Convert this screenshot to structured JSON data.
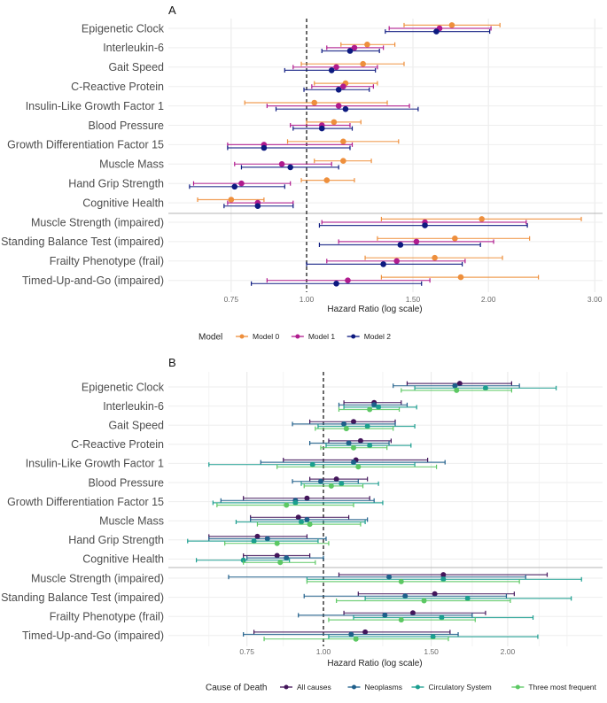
{
  "chart_data": [
    {
      "type": "forest",
      "panel_label": "A",
      "xlabel": "Hazard Ratio (log scale)",
      "x_scale": "log",
      "xlim": [
        0.62,
        3.15
      ],
      "x_ticks": [
        "0.75",
        "1.00",
        "1.50",
        "2.00",
        "3.00"
      ],
      "x_tick_values": [
        0.75,
        1.0,
        1.5,
        2.0,
        3.0
      ],
      "reference_line": 1.0,
      "group_separator_after": "Cognitive Health",
      "legend_title": "Model",
      "legend_position": "bottom",
      "categories": [
        "Epigenetic Clock",
        "Interleukin-6",
        "Gait Speed",
        "C-Reactive Protein",
        "Insulin-Like Growth Factor 1",
        "Blood Pressure",
        "Growth Differentiation Factor 15",
        "Muscle Mass",
        "Hand Grip Strength",
        "Cognitive Health",
        "Muscle Strength (impaired)",
        "Standing Balance Test (impaired)",
        "Frailty Phenotype (frail)",
        "Timed-Up-and-Go (impaired)"
      ],
      "series": [
        {
          "name": "Model 0",
          "color": "#ee8f3c",
          "hr": [
            1.74,
            1.26,
            1.24,
            1.16,
            1.03,
            1.11,
            1.15,
            1.15,
            1.08,
            0.75,
            1.95,
            1.76,
            1.63,
            1.8
          ],
          "lower": [
            1.45,
            1.14,
            0.98,
            1.03,
            0.79,
            1.0,
            0.93,
            1.03,
            0.98,
            0.66,
            1.33,
            1.31,
            1.25,
            1.33
          ],
          "upper": [
            2.09,
            1.4,
            1.45,
            1.31,
            1.36,
            1.23,
            1.42,
            1.28,
            1.2,
            0.85,
            2.85,
            2.34,
            2.11,
            2.42
          ]
        },
        {
          "name": "Model 1",
          "color": "#b01b8e",
          "hr": [
            1.66,
            1.2,
            1.12,
            1.15,
            1.13,
            1.06,
            0.85,
            0.91,
            0.78,
            0.83,
            1.57,
            1.52,
            1.41,
            1.17
          ],
          "lower": [
            1.37,
            1.08,
            0.95,
            1.02,
            0.86,
            0.94,
            0.74,
            0.76,
            0.65,
            0.74,
            1.06,
            1.13,
            1.08,
            0.86
          ],
          "upper": [
            2.02,
            1.34,
            1.31,
            1.29,
            1.48,
            1.18,
            1.19,
            1.1,
            0.94,
            0.95,
            2.31,
            2.04,
            1.83,
            1.6
          ]
        },
        {
          "name": "Model 2",
          "color": "#0d1a80",
          "hr": [
            1.64,
            1.18,
            1.1,
            1.13,
            1.16,
            1.06,
            0.85,
            0.94,
            0.76,
            0.83,
            1.57,
            1.43,
            1.34,
            1.12
          ],
          "lower": [
            1.35,
            1.06,
            0.92,
            0.99,
            0.89,
            0.95,
            0.74,
            0.78,
            0.64,
            0.73,
            1.05,
            1.05,
            1.0,
            0.81
          ],
          "upper": [
            2.01,
            1.32,
            1.3,
            1.27,
            1.53,
            1.19,
            1.18,
            1.13,
            0.92,
            0.95,
            2.32,
            1.94,
            1.81,
            1.55
          ]
        }
      ]
    },
    {
      "type": "forest",
      "panel_label": "B",
      "xlabel": "Hazard Ratio (log scale)",
      "x_scale": "log",
      "xlim": [
        0.58,
        2.7
      ],
      "x_ticks": [
        "0.75",
        "1.00",
        "1.50",
        "2.00"
      ],
      "x_tick_values": [
        0.75,
        1.0,
        1.5,
        2.0
      ],
      "reference_line": 1.0,
      "group_separator_after": "Cognitive Health",
      "legend_title": "Cause of Death",
      "legend_position": "bottom",
      "categories": [
        "Epigenetic Clock",
        "Interleukin-6",
        "Gait Speed",
        "C-Reactive Protein",
        "Insulin-Like Growth Factor 1",
        "Blood Pressure",
        "Growth Differentiation Factor 15",
        "Muscle Mass",
        "Hand Grip Strength",
        "Cognitive Health",
        "Muscle Strength (impaired)",
        "Standing Balance Test (impaired)",
        "Frailty Phenotype (frail)",
        "Timed-Up-and-Go (impaired)"
      ],
      "series": [
        {
          "name": "All causes",
          "color": "#43155a",
          "hr": [
            1.67,
            1.21,
            1.12,
            1.15,
            1.13,
            1.05,
            0.94,
            0.91,
            0.78,
            0.84,
            1.57,
            1.52,
            1.4,
            1.17
          ],
          "lower": [
            1.37,
            1.08,
            0.95,
            1.02,
            0.86,
            0.95,
            0.74,
            0.76,
            0.65,
            0.74,
            1.06,
            1.14,
            1.08,
            0.77
          ],
          "upper": [
            2.03,
            1.34,
            1.31,
            1.29,
            1.48,
            1.18,
            1.19,
            1.1,
            0.94,
            0.95,
            2.32,
            2.05,
            1.84,
            1.61
          ]
        },
        {
          "name": "Neoplasms",
          "color": "#1f5f8b",
          "hr": [
            1.64,
            1.21,
            1.08,
            1.1,
            1.12,
            0.99,
            0.9,
            0.94,
            0.81,
            0.87,
            1.28,
            1.36,
            1.26,
            1.11
          ],
          "lower": [
            1.3,
            1.06,
            0.89,
            0.95,
            0.79,
            0.89,
            0.68,
            0.76,
            0.65,
            0.75,
            0.7,
            0.93,
            0.91,
            0.74
          ],
          "upper": [
            2.09,
            1.37,
            1.31,
            1.28,
            1.58,
            1.14,
            1.21,
            1.18,
            1.01,
            1.0,
            2.14,
            1.99,
            1.75,
            1.66
          ]
        },
        {
          "name": "Circulatory System",
          "color": "#1b9e8f",
          "hr": [
            1.84,
            1.23,
            1.18,
            1.19,
            0.96,
            1.07,
            0.9,
            0.92,
            0.77,
            0.74,
            1.57,
            1.72,
            1.56,
            1.51
          ],
          "lower": [
            1.41,
            1.08,
            0.98,
            1.01,
            0.65,
            0.92,
            0.66,
            0.72,
            0.6,
            0.62,
            0.94,
            1.17,
            1.12,
            1.02
          ],
          "upper": [
            2.4,
            1.42,
            1.41,
            1.39,
            1.41,
            1.23,
            1.25,
            1.17,
            0.98,
            0.88,
            2.64,
            2.54,
            2.2,
            2.24
          ]
        },
        {
          "name": "Three most frequent",
          "color": "#5cc863",
          "hr": [
            1.65,
            1.19,
            1.09,
            1.12,
            1.14,
            1.03,
            0.87,
            0.95,
            0.84,
            0.85,
            1.34,
            1.46,
            1.34,
            1.13
          ],
          "lower": [
            1.34,
            1.06,
            0.97,
            0.99,
            0.84,
            0.93,
            0.67,
            0.78,
            0.69,
            0.74,
            0.94,
            1.05,
            1.02,
            0.8
          ],
          "upper": [
            2.03,
            1.33,
            1.3,
            1.27,
            1.53,
            1.16,
            1.12,
            1.15,
            1.02,
            0.97,
            2.09,
            2.02,
            1.77,
            1.6
          ]
        }
      ]
    }
  ]
}
